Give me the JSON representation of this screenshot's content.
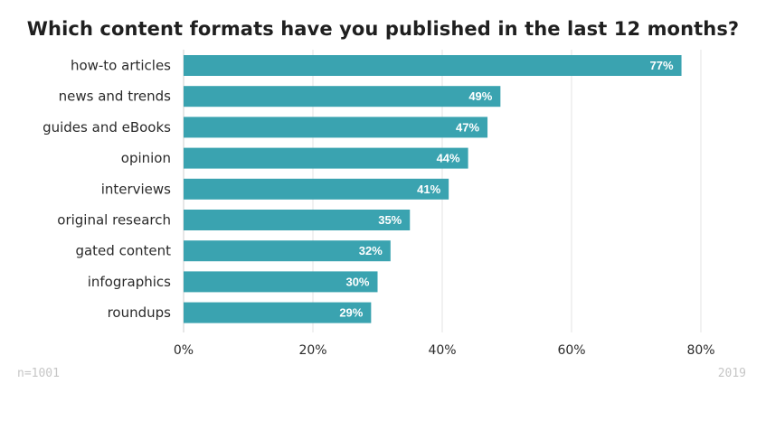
{
  "chart_data": {
    "type": "bar",
    "orientation": "horizontal",
    "title": "Which content formats have you published in the last 12 months?",
    "categories": [
      "how-to articles",
      "news and trends",
      "guides and eBooks",
      "opinion",
      "interviews",
      "original research",
      "gated content",
      "infographics",
      "roundups"
    ],
    "values": [
      77,
      49,
      47,
      44,
      41,
      35,
      32,
      30,
      29
    ],
    "value_labels": [
      "77%",
      "49%",
      "47%",
      "44%",
      "41%",
      "35%",
      "32%",
      "30%",
      "29%"
    ],
    "xlim": [
      0,
      80
    ],
    "x_ticks": [
      0,
      20,
      40,
      60,
      80
    ],
    "x_tick_labels": [
      "0%",
      "20%",
      "40%",
      "60%",
      "80%"
    ],
    "grid": true,
    "colors": {
      "bar": "#3aa3b0",
      "grid": "#e3e3e3",
      "label": "#2a2a2a",
      "value_text": "#ffffff"
    }
  },
  "footer": {
    "sample_size": "n=1001",
    "year": "2019"
  }
}
